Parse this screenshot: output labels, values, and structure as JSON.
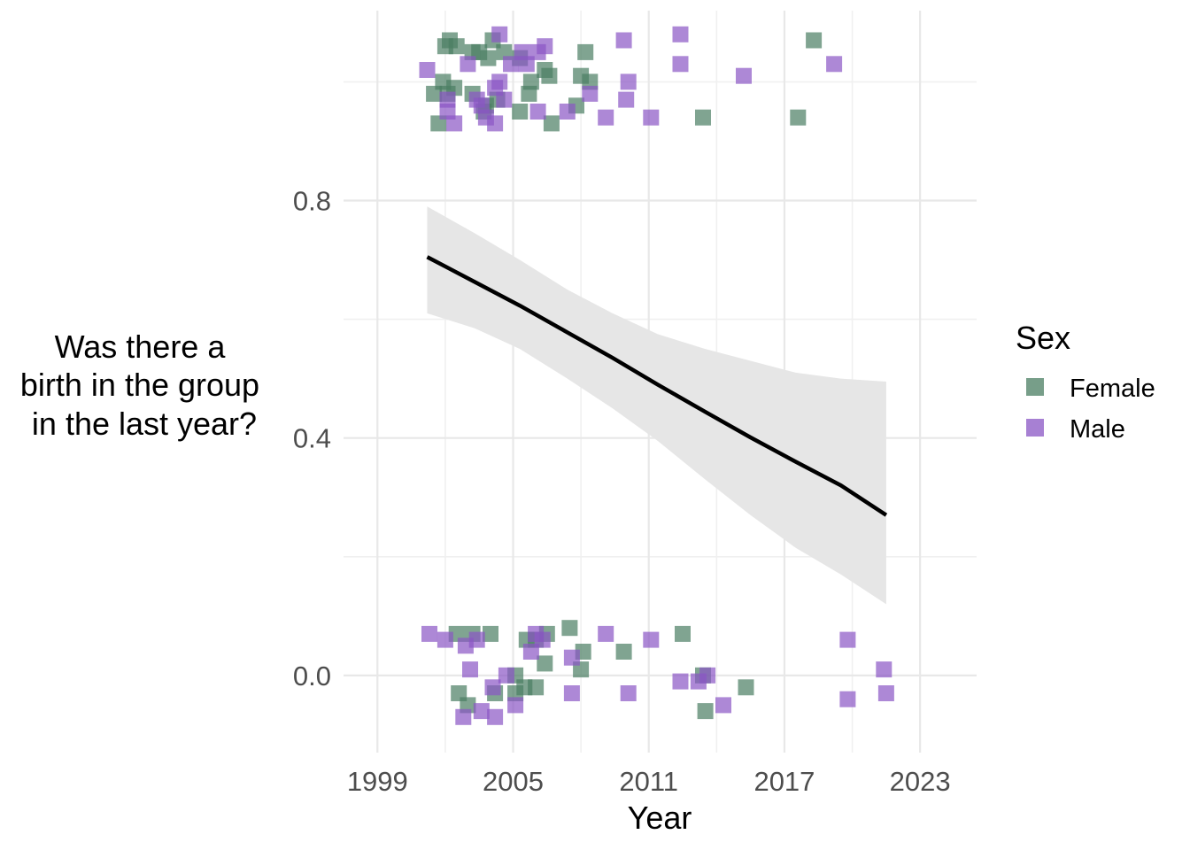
{
  "chart_data": {
    "type": "scatter",
    "xlabel": "Year",
    "ylabel_lines": [
      "Was there a",
      "birth in the group",
      "in the last year?"
    ],
    "xlim": [
      1997.5,
      2025.5
    ],
    "ylim": [
      -0.13,
      1.12
    ],
    "x_ticks": [
      1999,
      2005,
      2011,
      2017,
      2023
    ],
    "x_tick_labels": [
      "1999",
      "2005",
      "2011",
      "2017",
      "2023"
    ],
    "y_ticks": [
      0.0,
      0.4,
      0.8
    ],
    "y_tick_labels": [
      "0.0",
      "0.4",
      "0.8"
    ],
    "grid": true,
    "legend": {
      "title": "Sex",
      "position": "right",
      "entries": [
        {
          "label": "Female",
          "color": "#4a7d62"
        },
        {
          "label": "Male",
          "color": "#8a55c4"
        }
      ]
    },
    "series": [
      {
        "name": "Female",
        "color": "#4a7d62",
        "points": [
          [
            2002.0,
            1.06
          ],
          [
            2002.2,
            1.07
          ],
          [
            2002.5,
            1.06
          ],
          [
            2003.2,
            1.05
          ],
          [
            2003.9,
            1.04
          ],
          [
            2004.6,
            1.05
          ],
          [
            2003.5,
            1.05
          ],
          [
            2004.1,
            1.07
          ],
          [
            2005.3,
            1.04
          ],
          [
            2005.8,
            1.0
          ],
          [
            2006.6,
            1.01
          ],
          [
            2006.4,
            1.02
          ],
          [
            2001.5,
            0.98
          ],
          [
            2002.1,
            0.98
          ],
          [
            2002.4,
            0.99
          ],
          [
            2003.2,
            0.98
          ],
          [
            2003.8,
            0.96
          ],
          [
            2004.3,
            0.97
          ],
          [
            2005.3,
            0.95
          ],
          [
            2005.7,
            0.98
          ],
          [
            2006.7,
            0.93
          ],
          [
            2001.7,
            0.93
          ],
          [
            2001.9,
            1.0
          ],
          [
            2003.7,
            0.95
          ],
          [
            2007.8,
            0.96
          ],
          [
            2008.0,
            1.01
          ],
          [
            2008.4,
            1.0
          ],
          [
            2008.2,
            1.05
          ],
          [
            2013.4,
            0.94
          ],
          [
            2017.6,
            0.94
          ],
          [
            2018.3,
            1.07
          ],
          [
            2002.5,
            0.07
          ],
          [
            2003.2,
            0.07
          ],
          [
            2004.0,
            0.07
          ],
          [
            2005.6,
            0.06
          ],
          [
            2006.0,
            0.06
          ],
          [
            2006.5,
            0.07
          ],
          [
            2007.5,
            0.08
          ],
          [
            2008.1,
            0.04
          ],
          [
            2009.9,
            0.04
          ],
          [
            2012.5,
            0.07
          ],
          [
            2006.4,
            0.02
          ],
          [
            2008.0,
            0.01
          ],
          [
            2005.1,
            0.0
          ],
          [
            2005.5,
            -0.02
          ],
          [
            2004.2,
            -0.03
          ],
          [
            2002.6,
            -0.03
          ],
          [
            2003.0,
            -0.05
          ],
          [
            2005.1,
            -0.03
          ],
          [
            2006.0,
            -0.02
          ],
          [
            2013.4,
            0.0
          ],
          [
            2013.5,
            -0.06
          ],
          [
            2015.3,
            -0.02
          ]
        ]
      },
      {
        "name": "Male",
        "color": "#8a55c4",
        "points": [
          [
            2001.2,
            1.02
          ],
          [
            2002.1,
            0.95
          ],
          [
            2002.4,
            0.93
          ],
          [
            2003.0,
            1.03
          ],
          [
            2003.4,
            0.97
          ],
          [
            2003.8,
            0.94
          ],
          [
            2004.2,
            0.99
          ],
          [
            2004.4,
            1.08
          ],
          [
            2004.9,
            1.03
          ],
          [
            2005.4,
            1.05
          ],
          [
            2005.6,
            1.03
          ],
          [
            2006.1,
            1.05
          ],
          [
            2006.4,
            1.06
          ],
          [
            2006.1,
            0.95
          ],
          [
            2004.2,
            0.93
          ],
          [
            2004.6,
            0.97
          ],
          [
            2002.1,
            0.97
          ],
          [
            2003.6,
            0.96
          ],
          [
            2004.4,
            1.0
          ],
          [
            2007.4,
            0.95
          ],
          [
            2008.4,
            0.98
          ],
          [
            2009.1,
            0.94
          ],
          [
            2009.9,
            1.07
          ],
          [
            2010.1,
            1.0
          ],
          [
            2010.0,
            0.97
          ],
          [
            2011.1,
            0.94
          ],
          [
            2012.4,
            1.08
          ],
          [
            2012.4,
            1.03
          ],
          [
            2015.2,
            1.01
          ],
          [
            2019.2,
            1.03
          ],
          [
            2001.3,
            0.07
          ],
          [
            2002.0,
            0.06
          ],
          [
            2002.9,
            0.05
          ],
          [
            2003.4,
            0.06
          ],
          [
            2006.0,
            0.07
          ],
          [
            2006.3,
            0.06
          ],
          [
            2009.1,
            0.07
          ],
          [
            2011.1,
            0.06
          ],
          [
            2019.8,
            0.06
          ],
          [
            2003.1,
            0.01
          ],
          [
            2004.7,
            0.0
          ],
          [
            2005.8,
            0.04
          ],
          [
            2007.6,
            0.03
          ],
          [
            2004.1,
            -0.02
          ],
          [
            2005.1,
            -0.05
          ],
          [
            2003.6,
            -0.06
          ],
          [
            2004.2,
            -0.07
          ],
          [
            2002.8,
            -0.07
          ],
          [
            2007.6,
            -0.03
          ],
          [
            2010.1,
            -0.03
          ],
          [
            2012.4,
            -0.01
          ],
          [
            2013.2,
            -0.01
          ],
          [
            2013.6,
            0.0
          ],
          [
            2014.3,
            -0.05
          ],
          [
            2019.8,
            -0.04
          ],
          [
            2021.4,
            0.01
          ],
          [
            2021.5,
            -0.03
          ]
        ]
      }
    ],
    "trend_line": {
      "color": "#000000",
      "x": [
        2001.2,
        2003.3,
        2005.3,
        2007.4,
        2009.4,
        2011.4,
        2013.5,
        2015.5,
        2017.5,
        2019.5,
        2021.5
      ],
      "y": [
        0.705,
        0.663,
        0.623,
        0.578,
        0.535,
        0.49,
        0.444,
        0.401,
        0.36,
        0.32,
        0.27
      ]
    },
    "confidence_band": {
      "color": "#e6e6e6",
      "x": [
        2001.2,
        2003.3,
        2005.3,
        2007.4,
        2009.4,
        2011.4,
        2013.5,
        2015.5,
        2017.5,
        2019.5,
        2021.5
      ],
      "lower": [
        0.61,
        0.585,
        0.55,
        0.5,
        0.45,
        0.395,
        0.33,
        0.27,
        0.215,
        0.17,
        0.12
      ],
      "upper": [
        0.79,
        0.745,
        0.7,
        0.65,
        0.61,
        0.575,
        0.55,
        0.53,
        0.51,
        0.5,
        0.495
      ]
    }
  }
}
